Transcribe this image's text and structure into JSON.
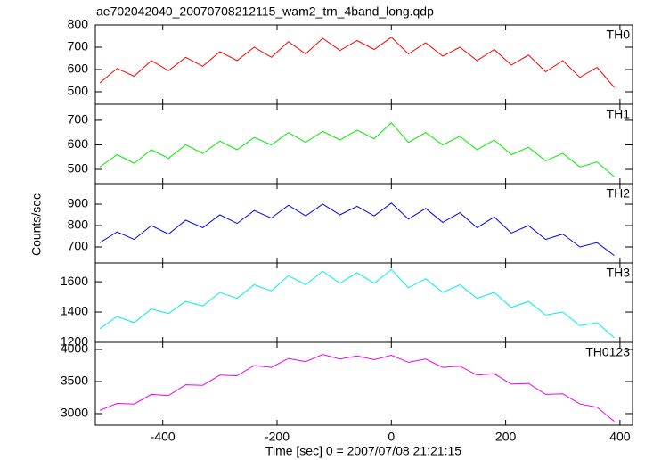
{
  "figure": {
    "title": "ae702042040_20070708212115_wam2_trn_4band_long.qdp",
    "xlabel": "Time [sec] 0 = 2007/07/08 21:21:15",
    "ylabel": "Counts/sec"
  },
  "chart_data": [
    {
      "type": "line",
      "x": [
        -510,
        -480,
        -450,
        -420,
        -390,
        -360,
        -330,
        -300,
        -270,
        -240,
        -210,
        -180,
        -150,
        -120,
        -90,
        -60,
        -30,
        0,
        30,
        60,
        90,
        120,
        150,
        180,
        210,
        240,
        270,
        300,
        330,
        360,
        390
      ],
      "series": [
        {
          "name": "TH0",
          "color": "#ff0000",
          "values": [
            540,
            605,
            570,
            640,
            595,
            655,
            615,
            680,
            640,
            700,
            655,
            725,
            670,
            740,
            685,
            730,
            690,
            745,
            670,
            720,
            660,
            700,
            640,
            690,
            620,
            665,
            590,
            640,
            565,
            610,
            520
          ]
        }
      ],
      "xlim": [
        -518,
        422
      ],
      "xticks": [
        -400,
        -200,
        0,
        200,
        400
      ],
      "ylim": [
        444,
        800
      ],
      "yticks": [
        500,
        600,
        700,
        800
      ]
    },
    {
      "type": "line",
      "x": [
        -510,
        -480,
        -450,
        -420,
        -390,
        -360,
        -330,
        -300,
        -270,
        -240,
        -210,
        -180,
        -150,
        -120,
        -90,
        -60,
        -30,
        0,
        30,
        60,
        90,
        120,
        150,
        180,
        210,
        240,
        270,
        300,
        330,
        360,
        390
      ],
      "series": [
        {
          "name": "TH1",
          "color": "#00ee00",
          "values": [
            510,
            560,
            525,
            580,
            545,
            600,
            565,
            615,
            580,
            630,
            600,
            650,
            610,
            655,
            620,
            660,
            625,
            690,
            610,
            650,
            600,
            635,
            580,
            620,
            560,
            590,
            535,
            565,
            510,
            530,
            470
          ]
        }
      ],
      "xlim": [
        -518,
        422
      ],
      "xticks": [
        -400,
        -200,
        0,
        200,
        400
      ],
      "ylim": [
        442,
        765
      ],
      "yticks": [
        500,
        600,
        700
      ]
    },
    {
      "type": "line",
      "x": [
        -510,
        -480,
        -450,
        -420,
        -390,
        -360,
        -330,
        -300,
        -270,
        -240,
        -210,
        -180,
        -150,
        -120,
        -90,
        -60,
        -30,
        0,
        30,
        60,
        90,
        120,
        150,
        180,
        210,
        240,
        270,
        300,
        330,
        360,
        390
      ],
      "series": [
        {
          "name": "TH2",
          "color": "#0000ee",
          "values": [
            720,
            770,
            735,
            800,
            760,
            825,
            790,
            850,
            810,
            870,
            835,
            895,
            845,
            900,
            850,
            890,
            845,
            905,
            830,
            880,
            815,
            860,
            790,
            840,
            765,
            800,
            735,
            760,
            700,
            720,
            660
          ]
        }
      ],
      "xlim": [
        -518,
        422
      ],
      "xticks": [
        -400,
        -200,
        0,
        200,
        400
      ],
      "ylim": [
        625,
        996
      ],
      "yticks": [
        700,
        800,
        900
      ]
    },
    {
      "type": "line",
      "x": [
        -510,
        -480,
        -450,
        -420,
        -390,
        -360,
        -330,
        -300,
        -270,
        -240,
        -210,
        -180,
        -150,
        -120,
        -90,
        -60,
        -30,
        0,
        30,
        60,
        90,
        120,
        150,
        180,
        210,
        240,
        270,
        300,
        330,
        360,
        390
      ],
      "series": [
        {
          "name": "TH3",
          "color": "#00eeee",
          "values": [
            1290,
            1370,
            1330,
            1420,
            1390,
            1470,
            1440,
            1530,
            1490,
            1580,
            1540,
            1640,
            1580,
            1670,
            1590,
            1660,
            1590,
            1680,
            1560,
            1620,
            1530,
            1580,
            1490,
            1530,
            1430,
            1470,
            1380,
            1400,
            1310,
            1330,
            1230
          ]
        }
      ],
      "xlim": [
        -518,
        422
      ],
      "xticks": [
        -400,
        -200,
        0,
        200,
        400
      ],
      "ylim": [
        1200,
        1724
      ],
      "yticks": [
        1200,
        1400,
        1600
      ]
    },
    {
      "type": "line",
      "x": [
        -510,
        -480,
        -450,
        -420,
        -390,
        -360,
        -330,
        -300,
        -270,
        -240,
        -210,
        -180,
        -150,
        -120,
        -90,
        -60,
        -30,
        0,
        30,
        60,
        90,
        120,
        150,
        180,
        210,
        240,
        270,
        300,
        330,
        360,
        390
      ],
      "series": [
        {
          "name": "TH0123",
          "color": "#ee00ee",
          "values": [
            3050,
            3160,
            3150,
            3300,
            3280,
            3450,
            3440,
            3600,
            3590,
            3750,
            3720,
            3860,
            3810,
            3920,
            3850,
            3900,
            3840,
            3910,
            3800,
            3850,
            3720,
            3740,
            3600,
            3620,
            3460,
            3470,
            3300,
            3310,
            3150,
            3100,
            2880
          ]
        }
      ],
      "xlim": [
        -518,
        422
      ],
      "xticks": [
        -400,
        -200,
        0,
        200,
        400
      ],
      "ylim": [
        2819,
        4111
      ],
      "yticks": [
        3000,
        3500,
        4000
      ]
    }
  ]
}
